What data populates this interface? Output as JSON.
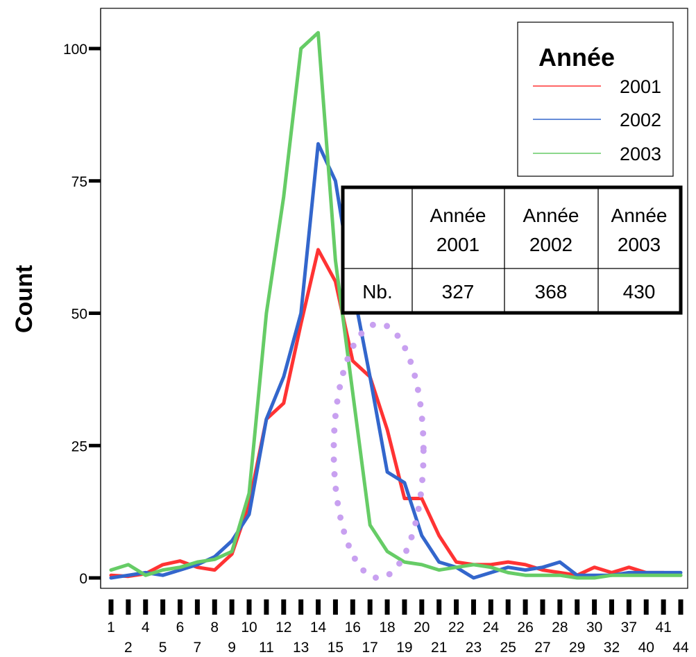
{
  "chart_data": {
    "type": "line",
    "title": "",
    "xlabel": "",
    "ylabel": "Count",
    "ylim": [
      0,
      105
    ],
    "yticks": [
      0,
      25,
      50,
      75,
      100
    ],
    "x_tick_labels_top": [
      "1",
      "4",
      "6",
      "8",
      "10",
      "12",
      "14",
      "16",
      "18",
      "20",
      "22",
      "24",
      "26",
      "28",
      "30",
      "37",
      "41"
    ],
    "x_tick_labels_bottom": [
      "2",
      "5",
      "7",
      "9",
      "11",
      "13",
      "15",
      "17",
      "19",
      "21",
      "23",
      "25",
      "27",
      "29",
      "32",
      "40",
      "44"
    ],
    "x_category_count": 34,
    "legend": {
      "title": "Année",
      "position": "top-right"
    },
    "series": [
      {
        "name": "2001",
        "color": "#ff3333",
        "values": [
          0.5,
          0.3,
          0.8,
          2.5,
          3.2,
          2.0,
          1.5,
          4.5,
          14,
          30,
          33,
          48,
          62,
          56,
          41,
          38,
          28,
          15,
          15,
          8,
          3,
          2.5,
          2.5,
          3,
          2.5,
          1.5,
          1,
          0.5,
          2,
          1,
          2,
          1,
          1,
          0.5
        ]
      },
      {
        "name": "2002",
        "color": "#3366cc",
        "values": [
          0,
          0.5,
          1,
          0.5,
          1.5,
          2.5,
          4,
          7,
          12,
          30,
          38,
          50,
          82,
          75,
          55,
          38,
          20,
          18,
          8,
          3,
          2,
          0,
          1,
          2,
          1.5,
          2,
          3,
          0.5,
          0.5,
          0.5,
          1,
          1,
          1,
          1
        ]
      },
      {
        "name": "2003",
        "color": "#66cc66",
        "values": [
          1.5,
          2.5,
          0.5,
          1.5,
          2,
          3,
          3.5,
          5,
          16,
          50,
          72,
          100,
          103,
          60,
          35,
          10,
          5,
          3,
          2.5,
          1.5,
          2,
          2.5,
          2,
          1,
          0.5,
          0.5,
          0.5,
          0,
          0,
          0.5,
          0.5,
          0.5,
          0.5,
          0.5
        ]
      }
    ],
    "annotation": {
      "shape": "dotted-ellipse",
      "color": "#c8a0f0",
      "x_center": 16.5,
      "y_center": 24,
      "x_radius": 2.6,
      "y_radius": 24
    },
    "inset_table": {
      "headers": [
        "",
        "Année\n2001",
        "Année\n2002",
        "Année\n2003"
      ],
      "headers_line1": [
        "",
        "Année",
        "Année",
        "Année"
      ],
      "headers_line2": [
        "",
        "2001",
        "2002",
        "2003"
      ],
      "row_label": "Nb.",
      "row_values": [
        "327",
        "368",
        "430"
      ]
    }
  }
}
